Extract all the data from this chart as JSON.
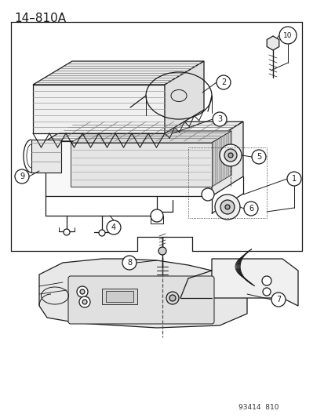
{
  "title": "14–810A",
  "footer": "93414  810",
  "bg_color": "#ffffff",
  "lc": "#1a1a1a",
  "fig_w": 4.14,
  "fig_h": 5.33,
  "dpi": 100
}
